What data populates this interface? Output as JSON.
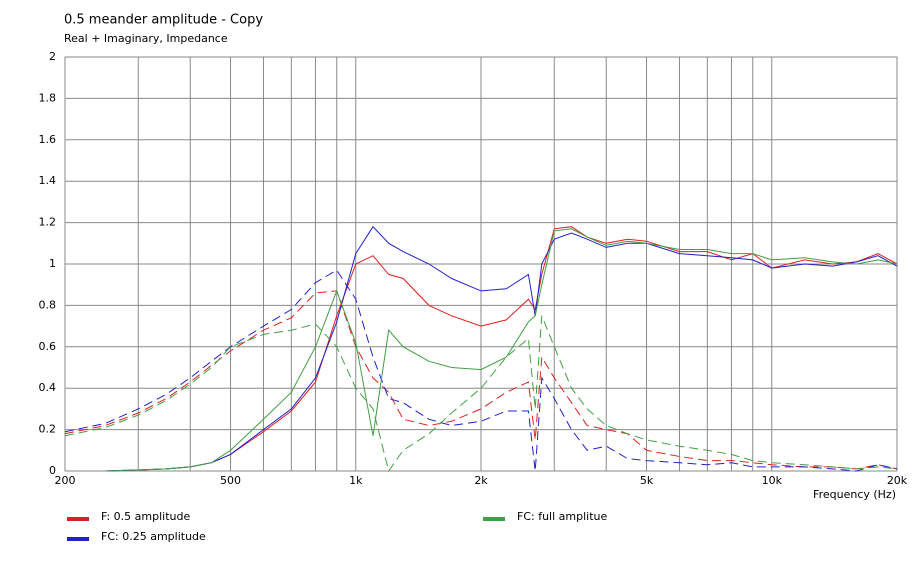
{
  "chart_data": {
    "type": "line",
    "title": "0.5 meander amplitude - Copy",
    "subtitle": "Real + Imaginary, Impedance",
    "x_label": "Frequency  (Hz)",
    "log_x": true,
    "grid": true,
    "xlim": [
      200,
      20000
    ],
    "ylim": [
      0,
      2
    ],
    "xticks": [
      200,
      500,
      {
        "value": 1000,
        "label": "1k"
      },
      {
        "value": 2000,
        "label": "2k"
      },
      {
        "value": 5000,
        "label": "5k"
      },
      {
        "value": 10000,
        "label": "10k"
      },
      {
        "value": 20000,
        "label": "20k"
      }
    ],
    "xgrid_minor": [
      300,
      400,
      600,
      700,
      800,
      900,
      3000,
      4000,
      6000,
      7000,
      8000,
      9000
    ],
    "yticks": [
      0,
      0.2,
      0.4,
      0.6,
      0.8,
      1,
      1.2,
      1.4,
      1.6,
      1.8,
      2
    ],
    "x": [
      200,
      250,
      300,
      350,
      400,
      450,
      500,
      600,
      700,
      800,
      900,
      1000,
      1100,
      1200,
      1300,
      1500,
      1700,
      2000,
      2300,
      2600,
      2700,
      2800,
      3000,
      3300,
      3600,
      4000,
      4500,
      5000,
      6000,
      7000,
      8000,
      9000,
      10000,
      12000,
      14000,
      16000,
      18000,
      20000
    ],
    "series": [
      {
        "name": "F: 0.5 amplitude",
        "color": "#e02020",
        "values": [
          null,
          0,
          0.005,
          0.01,
          0.02,
          0.04,
          0.08,
          0.19,
          0.29,
          0.43,
          0.75,
          1.0,
          1.04,
          0.95,
          0.93,
          0.8,
          0.75,
          0.7,
          0.73,
          0.83,
          0.78,
          0.95,
          1.17,
          1.18,
          1.13,
          1.1,
          1.12,
          1.11,
          1.06,
          1.06,
          1.02,
          1.05,
          0.98,
          1.02,
          1.0,
          1.01,
          1.05,
          1.0
        ],
        "imag_values": [
          0.18,
          0.22,
          0.28,
          0.35,
          0.43,
          0.51,
          0.58,
          0.68,
          0.74,
          0.86,
          0.87,
          0.6,
          0.45,
          0.38,
          0.25,
          0.22,
          0.24,
          0.3,
          0.38,
          0.43,
          0.15,
          0.55,
          0.45,
          0.33,
          0.22,
          0.2,
          0.18,
          0.1,
          0.07,
          0.05,
          0.05,
          0.04,
          0.03,
          0.02,
          0.02,
          0.01,
          0.03,
          0.01
        ]
      },
      {
        "name": "FC: 0.25 amplitude",
        "color": "#2020d0",
        "values": [
          null,
          0,
          0.005,
          0.01,
          0.02,
          0.04,
          0.08,
          0.2,
          0.3,
          0.45,
          0.72,
          1.05,
          1.18,
          1.1,
          1.06,
          1.0,
          0.93,
          0.87,
          0.88,
          0.95,
          0.75,
          1.0,
          1.12,
          1.15,
          1.12,
          1.08,
          1.1,
          1.1,
          1.05,
          1.04,
          1.03,
          1.02,
          0.98,
          1.0,
          0.99,
          1.01,
          1.04,
          0.99
        ],
        "imag_values": [
          0.19,
          0.23,
          0.3,
          0.37,
          0.45,
          0.53,
          0.6,
          0.7,
          0.78,
          0.91,
          0.97,
          0.83,
          0.55,
          0.35,
          0.33,
          0.25,
          0.22,
          0.24,
          0.29,
          0.29,
          0.0,
          0.45,
          0.35,
          0.2,
          0.1,
          0.12,
          0.06,
          0.05,
          0.04,
          0.03,
          0.04,
          0.02,
          0.02,
          0.02,
          0.01,
          0.0,
          0.03,
          0.01
        ]
      },
      {
        "name": "FC: full amplitue",
        "color": "#40a040",
        "values": [
          null,
          0,
          0.005,
          0.01,
          0.02,
          0.04,
          0.1,
          0.25,
          0.38,
          0.6,
          0.87,
          0.62,
          0.17,
          0.68,
          0.6,
          0.53,
          0.5,
          0.49,
          0.55,
          0.72,
          0.75,
          0.9,
          1.16,
          1.17,
          1.13,
          1.09,
          1.11,
          1.1,
          1.07,
          1.07,
          1.05,
          1.05,
          1.02,
          1.03,
          1.01,
          1.0,
          1.02,
          1.0
        ],
        "imag_values": [
          0.17,
          0.21,
          0.27,
          0.34,
          0.42,
          0.5,
          0.6,
          0.66,
          0.68,
          0.71,
          0.6,
          0.4,
          0.3,
          0.0,
          0.1,
          0.18,
          0.28,
          0.4,
          0.55,
          0.64,
          0.3,
          0.75,
          0.6,
          0.4,
          0.3,
          0.22,
          0.18,
          0.15,
          0.12,
          0.1,
          0.08,
          0.05,
          0.04,
          0.03,
          0.02,
          0.01,
          0.02,
          0.01
        ]
      }
    ]
  }
}
